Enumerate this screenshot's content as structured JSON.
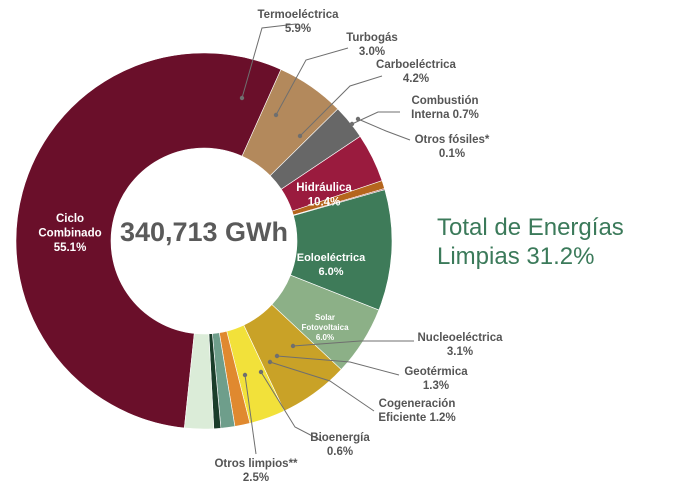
{
  "chart_data": {
    "type": "pie",
    "variant": "donut",
    "center_label": "340,713 GWh",
    "total_clean_line1": "Total de Energías",
    "total_clean_line2": "Limpias 31.2%",
    "slices": [
      {
        "name_lines": [
          "Ciclo",
          "Combinado"
        ],
        "value_label": "55.1%",
        "value": 55.1,
        "color": "#6a0f2a",
        "label_position": "inside"
      },
      {
        "name_lines": [
          "Termoeléctrica"
        ],
        "value_label": "5.9%",
        "value": 5.9,
        "color": "#b3895c",
        "label_position": "outside"
      },
      {
        "name_lines": [
          "Turbogás"
        ],
        "value_label": "3.0%",
        "value": 3.0,
        "color": "#676767",
        "label_position": "outside"
      },
      {
        "name_lines": [
          "Carboeléctrica"
        ],
        "value_label": "4.2%",
        "value": 4.2,
        "color": "#9a1b3e",
        "label_position": "outside"
      },
      {
        "name_lines": [
          "Combustión",
          "Interna 0.7%"
        ],
        "value_label": "",
        "value": 0.7,
        "color": "#b5651d",
        "label_position": "outside"
      },
      {
        "name_lines": [
          "Otros fósiles*"
        ],
        "value_label": "0.1%",
        "value": 0.1,
        "color": "#8c2a2a",
        "label_position": "outside"
      },
      {
        "name_lines": [
          "Hidráulica"
        ],
        "value_label": "10.4%",
        "value": 10.4,
        "color": "#3e7b59",
        "label_position": "inside"
      },
      {
        "name_lines": [
          "Eoloeléctrica"
        ],
        "value_label": "6.0%",
        "value": 6.0,
        "color": "#8cb087",
        "label_position": "inside"
      },
      {
        "name_lines": [
          "Solar",
          "Fotovoltaica"
        ],
        "value_label": "6.0%",
        "value": 6.0,
        "color": "#c9a227",
        "label_position": "inside"
      },
      {
        "name_lines": [
          "Nucleoeléctrica"
        ],
        "value_label": "3.1%",
        "value": 3.1,
        "color": "#f2e13a",
        "label_position": "outside"
      },
      {
        "name_lines": [
          "Geotérmica"
        ],
        "value_label": "1.3%",
        "value": 1.3,
        "color": "#e0892f",
        "label_position": "outside"
      },
      {
        "name_lines": [
          "Cogeneración",
          "Eficiente 1.2%"
        ],
        "value_label": "",
        "value": 1.2,
        "color": "#6e9e8b",
        "label_position": "outside"
      },
      {
        "name_lines": [
          "Bioenergía"
        ],
        "value_label": "0.6%",
        "value": 0.6,
        "color": "#1a3d2a",
        "label_position": "outside"
      },
      {
        "name_lines": [
          "Otros limpios**"
        ],
        "value_label": "2.5%",
        "value": 2.5,
        "color": "#dbecd8",
        "label_position": "outside"
      }
    ]
  }
}
